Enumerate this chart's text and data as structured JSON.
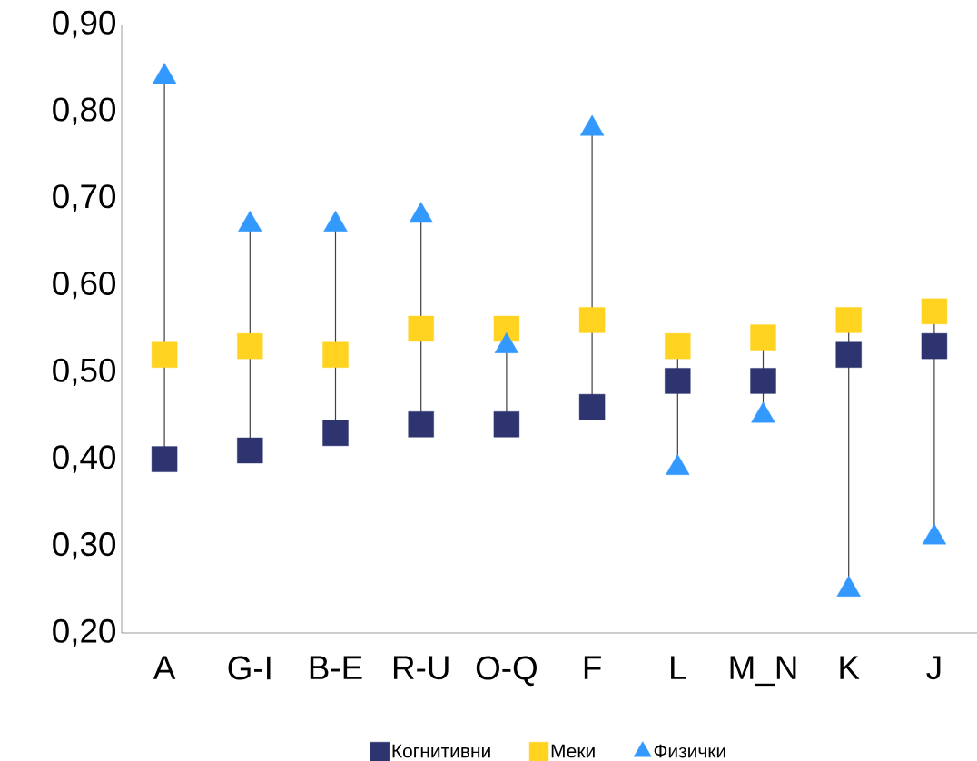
{
  "chart_data": {
    "type": "scatter",
    "categories": [
      "A",
      "G-I",
      "B-E",
      "R-U",
      "O-Q",
      "F",
      "L",
      "M_N",
      "K",
      "J"
    ],
    "series": [
      {
        "name": "Когнитивни",
        "color": "#2e3470",
        "marker": "square",
        "values": [
          0.4,
          0.41,
          0.43,
          0.44,
          0.44,
          0.46,
          0.49,
          0.49,
          0.52,
          0.53
        ]
      },
      {
        "name": "Меки",
        "color": "#ffd320",
        "marker": "square",
        "values": [
          0.52,
          0.53,
          0.52,
          0.55,
          0.55,
          0.56,
          0.53,
          0.54,
          0.56,
          0.57
        ]
      },
      {
        "name": "Физички",
        "color": "#3399ff",
        "marker": "triangle",
        "values": [
          0.84,
          0.67,
          0.67,
          0.68,
          0.53,
          0.78,
          0.39,
          0.45,
          0.25,
          0.31
        ]
      }
    ],
    "ylim": [
      0.2,
      0.9
    ],
    "yticks": [
      {
        "value": 0.2,
        "label": "0,20"
      },
      {
        "value": 0.3,
        "label": "0,30"
      },
      {
        "value": 0.4,
        "label": "0,40"
      },
      {
        "value": 0.5,
        "label": "0,50"
      },
      {
        "value": 0.6,
        "label": "0,60"
      },
      {
        "value": 0.7,
        "label": "0,70"
      },
      {
        "value": 0.8,
        "label": "0,80"
      },
      {
        "value": 0.9,
        "label": "0,90"
      }
    ],
    "grid": false,
    "legend": "bottom"
  }
}
